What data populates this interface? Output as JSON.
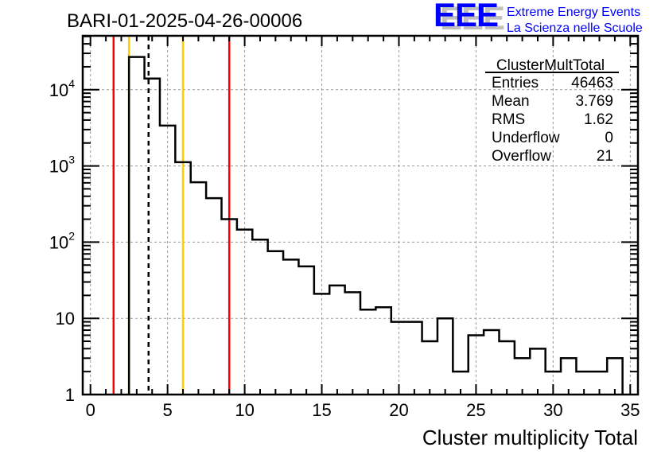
{
  "logo": {
    "letters": "EEE",
    "line1": "Extreme Energy Events",
    "line2": "La Scienza nelle Scuole",
    "color": "#0000ff",
    "shadow": "#c0c0c0"
  },
  "chart_data": {
    "type": "bar",
    "style": "step-histogram",
    "title": "BARI-01-2025-04-26-00006",
    "xlabel": "Cluster multiplicity Total",
    "ylabel": "",
    "xlim": [
      -0.5,
      35.5
    ],
    "ylim": [
      1,
      51000
    ],
    "yscale": "log",
    "grid": true,
    "x_ticks": [
      "0",
      "5",
      "10",
      "15",
      "20",
      "25",
      "30",
      "35"
    ],
    "y_ticks": [
      {
        "base": "1",
        "exp": ""
      },
      {
        "base": "10",
        "exp": ""
      },
      {
        "base": "10",
        "exp": "2"
      },
      {
        "base": "10",
        "exp": "3"
      },
      {
        "base": "10",
        "exp": "4"
      }
    ],
    "bin_centers": [
      3,
      4,
      5,
      6,
      7,
      8,
      9,
      10,
      11,
      12,
      13,
      14,
      15,
      16,
      17,
      18,
      19,
      20,
      21,
      22,
      23,
      24,
      25,
      26,
      27,
      28,
      29,
      30,
      31,
      32,
      33,
      34
    ],
    "values": [
      26900,
      14000,
      3380,
      1120,
      610,
      377,
      200,
      146,
      108,
      76,
      59,
      48,
      21,
      27,
      22,
      13,
      14,
      9,
      9,
      5,
      10,
      2,
      6,
      7,
      5,
      3,
      4,
      2,
      3,
      2,
      2,
      3
    ],
    "bin_width": 1,
    "line_color": "#000000",
    "markers": [
      {
        "name": "red-line-low",
        "x": 1.5,
        "color": "#ff0000",
        "style": "solid"
      },
      {
        "name": "yellow-line-low",
        "x": 2.5,
        "color": "#ffcc00",
        "style": "solid"
      },
      {
        "name": "mean-line",
        "x": 3.769,
        "color": "#000000",
        "style": "dashed"
      },
      {
        "name": "yellow-line-high",
        "x": 6,
        "color": "#ffcc00",
        "style": "solid"
      },
      {
        "name": "red-line-high",
        "x": 9,
        "color": "#ff0000",
        "style": "solid"
      }
    ],
    "stats": {
      "title": "ClusterMultTotal",
      "rows": [
        {
          "label": "Entries",
          "value": "46463"
        },
        {
          "label": "Mean",
          "value": "3.769"
        },
        {
          "label": "RMS",
          "value": "1.62"
        },
        {
          "label": "Underflow",
          "value": "0"
        },
        {
          "label": "Overflow",
          "value": "21"
        }
      ]
    },
    "legend": "top-right"
  }
}
